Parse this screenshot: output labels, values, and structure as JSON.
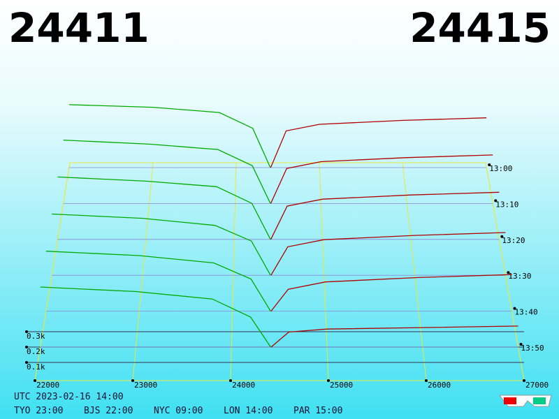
{
  "chart_data": {
    "type": "depth",
    "best_bid": 24411,
    "best_ask": 24415,
    "bid_color": "#00aa00",
    "ask_color": "#b00000",
    "xlim": [
      22000,
      27000
    ],
    "xticks": [
      22000,
      23000,
      24000,
      25000,
      26000,
      27000
    ],
    "zticks": [
      {
        "value": 100,
        "label": "0.1k"
      },
      {
        "value": 200,
        "label": "0.2k"
      },
      {
        "value": 300,
        "label": "0.3k"
      }
    ],
    "rows": [
      {
        "time": "13:00",
        "bid_prices": [
          22000,
          23000,
          23800,
          24200,
          24411
        ],
        "bid_depth": [
          480,
          460,
          420,
          300,
          0
        ],
        "ask_prices": [
          24415,
          24600,
          25000,
          26000,
          27000
        ],
        "ask_depth": [
          0,
          280,
          330,
          360,
          380
        ]
      },
      {
        "time": "13:10",
        "bid_prices": [
          22000,
          23000,
          23800,
          24200,
          24411
        ],
        "bid_depth": [
          470,
          440,
          400,
          280,
          0
        ],
        "ask_prices": [
          24415,
          24600,
          25000,
          26000,
          27000
        ],
        "ask_depth": [
          0,
          260,
          310,
          340,
          360
        ]
      },
      {
        "time": "13:20",
        "bid_prices": [
          22000,
          23000,
          23800,
          24200,
          24411
        ],
        "bid_depth": [
          450,
          420,
          380,
          260,
          0
        ],
        "ask_prices": [
          24415,
          24600,
          25000,
          26000,
          27000
        ],
        "ask_depth": [
          0,
          240,
          290,
          320,
          340
        ]
      },
      {
        "time": "13:30",
        "bid_prices": [
          22000,
          23000,
          23800,
          24200,
          24411
        ],
        "bid_depth": [
          430,
          400,
          350,
          240,
          0
        ],
        "ask_prices": [
          24415,
          24600,
          25000,
          26000,
          27000
        ],
        "ask_depth": [
          0,
          200,
          250,
          280,
          300
        ]
      },
      {
        "time": "13:40",
        "bid_prices": [
          22000,
          23000,
          23800,
          24200,
          24411
        ],
        "bid_depth": [
          410,
          380,
          330,
          220,
          0
        ],
        "ask_prices": [
          24415,
          24600,
          25000,
          26000,
          27000
        ],
        "ask_depth": [
          0,
          150,
          200,
          230,
          250
        ]
      },
      {
        "time": "13:50",
        "bid_prices": [
          22000,
          23000,
          23800,
          24200,
          24411
        ],
        "bid_depth": [
          400,
          370,
          320,
          200,
          0
        ],
        "ask_prices": [
          24415,
          24600,
          25000,
          26000,
          27000
        ],
        "ask_depth": [
          0,
          100,
          120,
          130,
          140
        ]
      }
    ],
    "footer_utc": "UTC 2023-02-16 14:00",
    "footer_zones": [
      "TYO 23:00",
      "BJS 22:00",
      "NYC 09:00",
      "LON 14:00",
      "PAR 15:00"
    ]
  }
}
